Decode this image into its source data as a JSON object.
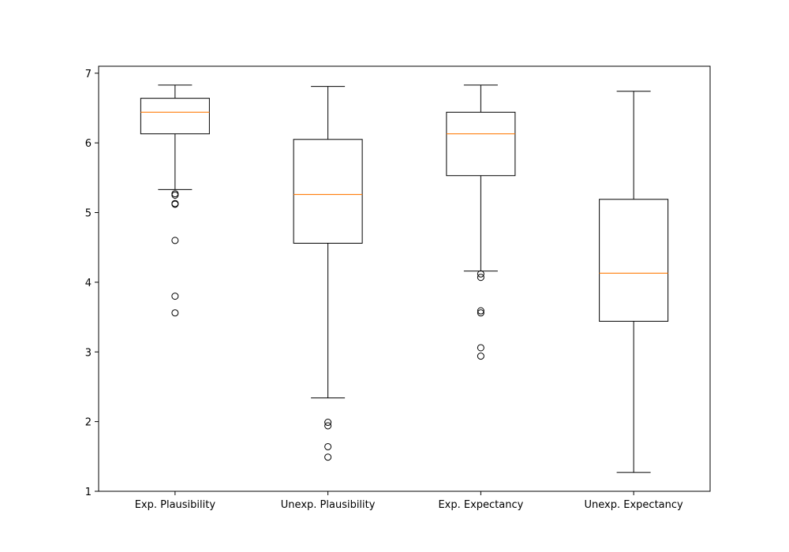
{
  "chart_data": {
    "type": "box",
    "title": "",
    "xlabel": "",
    "ylabel": "",
    "ylim": [
      1,
      7.1
    ],
    "yticks": [
      1,
      2,
      3,
      4,
      5,
      6,
      7
    ],
    "grid": false,
    "categories": [
      "Exp. Plausibility",
      "Unexp. Plausibility",
      "Exp. Expectancy",
      "Unexp. Expectancy"
    ],
    "boxes": [
      {
        "label": "Exp. Plausibility",
        "whisker_low": 5.33,
        "q1": 6.13,
        "median": 6.44,
        "q3": 6.64,
        "whisker_high": 6.83,
        "outliers": [
          5.27,
          5.25,
          5.13,
          5.12,
          4.6,
          3.8,
          3.56
        ]
      },
      {
        "label": "Unexp. Plausibility",
        "whisker_low": 2.34,
        "q1": 4.56,
        "median": 5.26,
        "q3": 6.05,
        "whisker_high": 6.81,
        "outliers": [
          1.99,
          1.94,
          1.64,
          1.49
        ]
      },
      {
        "label": "Exp. Expectancy",
        "whisker_low": 4.16,
        "q1": 5.53,
        "median": 6.13,
        "q3": 6.44,
        "whisker_high": 6.83,
        "outliers": [
          4.12,
          4.07,
          3.59,
          3.56,
          3.06,
          2.94
        ]
      },
      {
        "label": "Unexp. Expectancy",
        "whisker_low": 1.27,
        "q1": 3.44,
        "median": 4.13,
        "q3": 5.19,
        "whisker_high": 6.74,
        "outliers": []
      }
    ],
    "colors": {
      "box": "#000000",
      "median": "#ff7f0e",
      "whisker": "#000000",
      "outlier": "#000000"
    }
  }
}
